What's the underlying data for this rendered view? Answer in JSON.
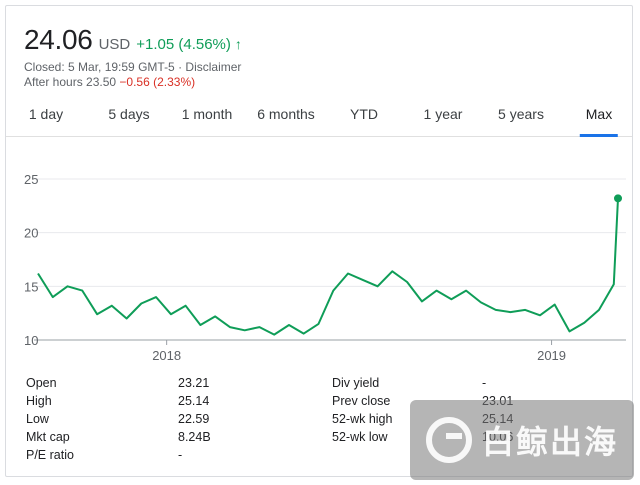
{
  "quote": {
    "price": "24.06",
    "currency": "USD",
    "change": "+1.05 (4.56%)",
    "arrow": "↑",
    "status_line": "Closed: 5 Mar, 19:59 GMT-5 · Disclaimer",
    "after_hours_label": "After hours 23.50",
    "after_hours_change": "−0.56 (2.33%)",
    "positive_color": "#0f9d58",
    "negative_color": "#d93025"
  },
  "tabs": [
    {
      "label": "1 day",
      "active": false
    },
    {
      "label": "5 days",
      "active": false
    },
    {
      "label": "1 month",
      "active": false
    },
    {
      "label": "6 months",
      "active": false
    },
    {
      "label": "YTD",
      "active": false
    },
    {
      "label": "1 year",
      "active": false
    },
    {
      "label": "5 years",
      "active": false
    },
    {
      "label": "Max",
      "active": true
    }
  ],
  "chart_data": {
    "type": "line",
    "line_color": "#0f9d58",
    "ylim": [
      10,
      25
    ],
    "y_ticks": [
      "25",
      "20",
      "15",
      "10"
    ],
    "x_ticks": [
      "2018",
      "2019"
    ],
    "grid": true,
    "series": [
      {
        "x": [
          "2017-09-01",
          "2017-09-15",
          "2017-09-29",
          "2017-10-13",
          "2017-10-27",
          "2017-11-10",
          "2017-11-24",
          "2017-12-08",
          "2017-12-22",
          "2018-01-05",
          "2018-01-19",
          "2018-02-02",
          "2018-02-16",
          "2018-03-02",
          "2018-03-16",
          "2018-03-30",
          "2018-04-13",
          "2018-04-27",
          "2018-05-11",
          "2018-05-25",
          "2018-06-08",
          "2018-06-22",
          "2018-07-06",
          "2018-07-20",
          "2018-08-03",
          "2018-08-17",
          "2018-08-31",
          "2018-09-14",
          "2018-09-28",
          "2018-10-12",
          "2018-10-26",
          "2018-11-09",
          "2018-11-23",
          "2018-12-07",
          "2018-12-21",
          "2019-01-04",
          "2019-01-18",
          "2019-02-01",
          "2019-02-15",
          "2019-03-01",
          "2019-03-05"
        ],
        "y": [
          16.2,
          14.0,
          15.0,
          14.6,
          12.4,
          13.2,
          12.0,
          13.4,
          14.0,
          12.4,
          13.2,
          11.4,
          12.2,
          11.2,
          10.9,
          11.2,
          10.5,
          11.4,
          10.6,
          11.5,
          14.6,
          16.2,
          15.6,
          15.0,
          16.4,
          15.4,
          13.6,
          14.6,
          13.8,
          14.6,
          13.5,
          12.8,
          12.6,
          12.8,
          12.3,
          13.3,
          10.8,
          11.6,
          12.8,
          15.2,
          23.2
        ]
      }
    ]
  },
  "stats": {
    "left": [
      {
        "label": "Open",
        "value": "23.21"
      },
      {
        "label": "High",
        "value": "25.14"
      },
      {
        "label": "Low",
        "value": "22.59"
      },
      {
        "label": "Mkt cap",
        "value": "8.24B"
      },
      {
        "label": "P/E ratio",
        "value": "-"
      }
    ],
    "right": [
      {
        "label": "Div yield",
        "value": "-"
      },
      {
        "label": "Prev close",
        "value": "23.01"
      },
      {
        "label": "52-wk high",
        "value": "25.14"
      },
      {
        "label": "52-wk low",
        "value": "10.06"
      }
    ]
  },
  "watermark": {
    "text": "白鲸出海"
  }
}
